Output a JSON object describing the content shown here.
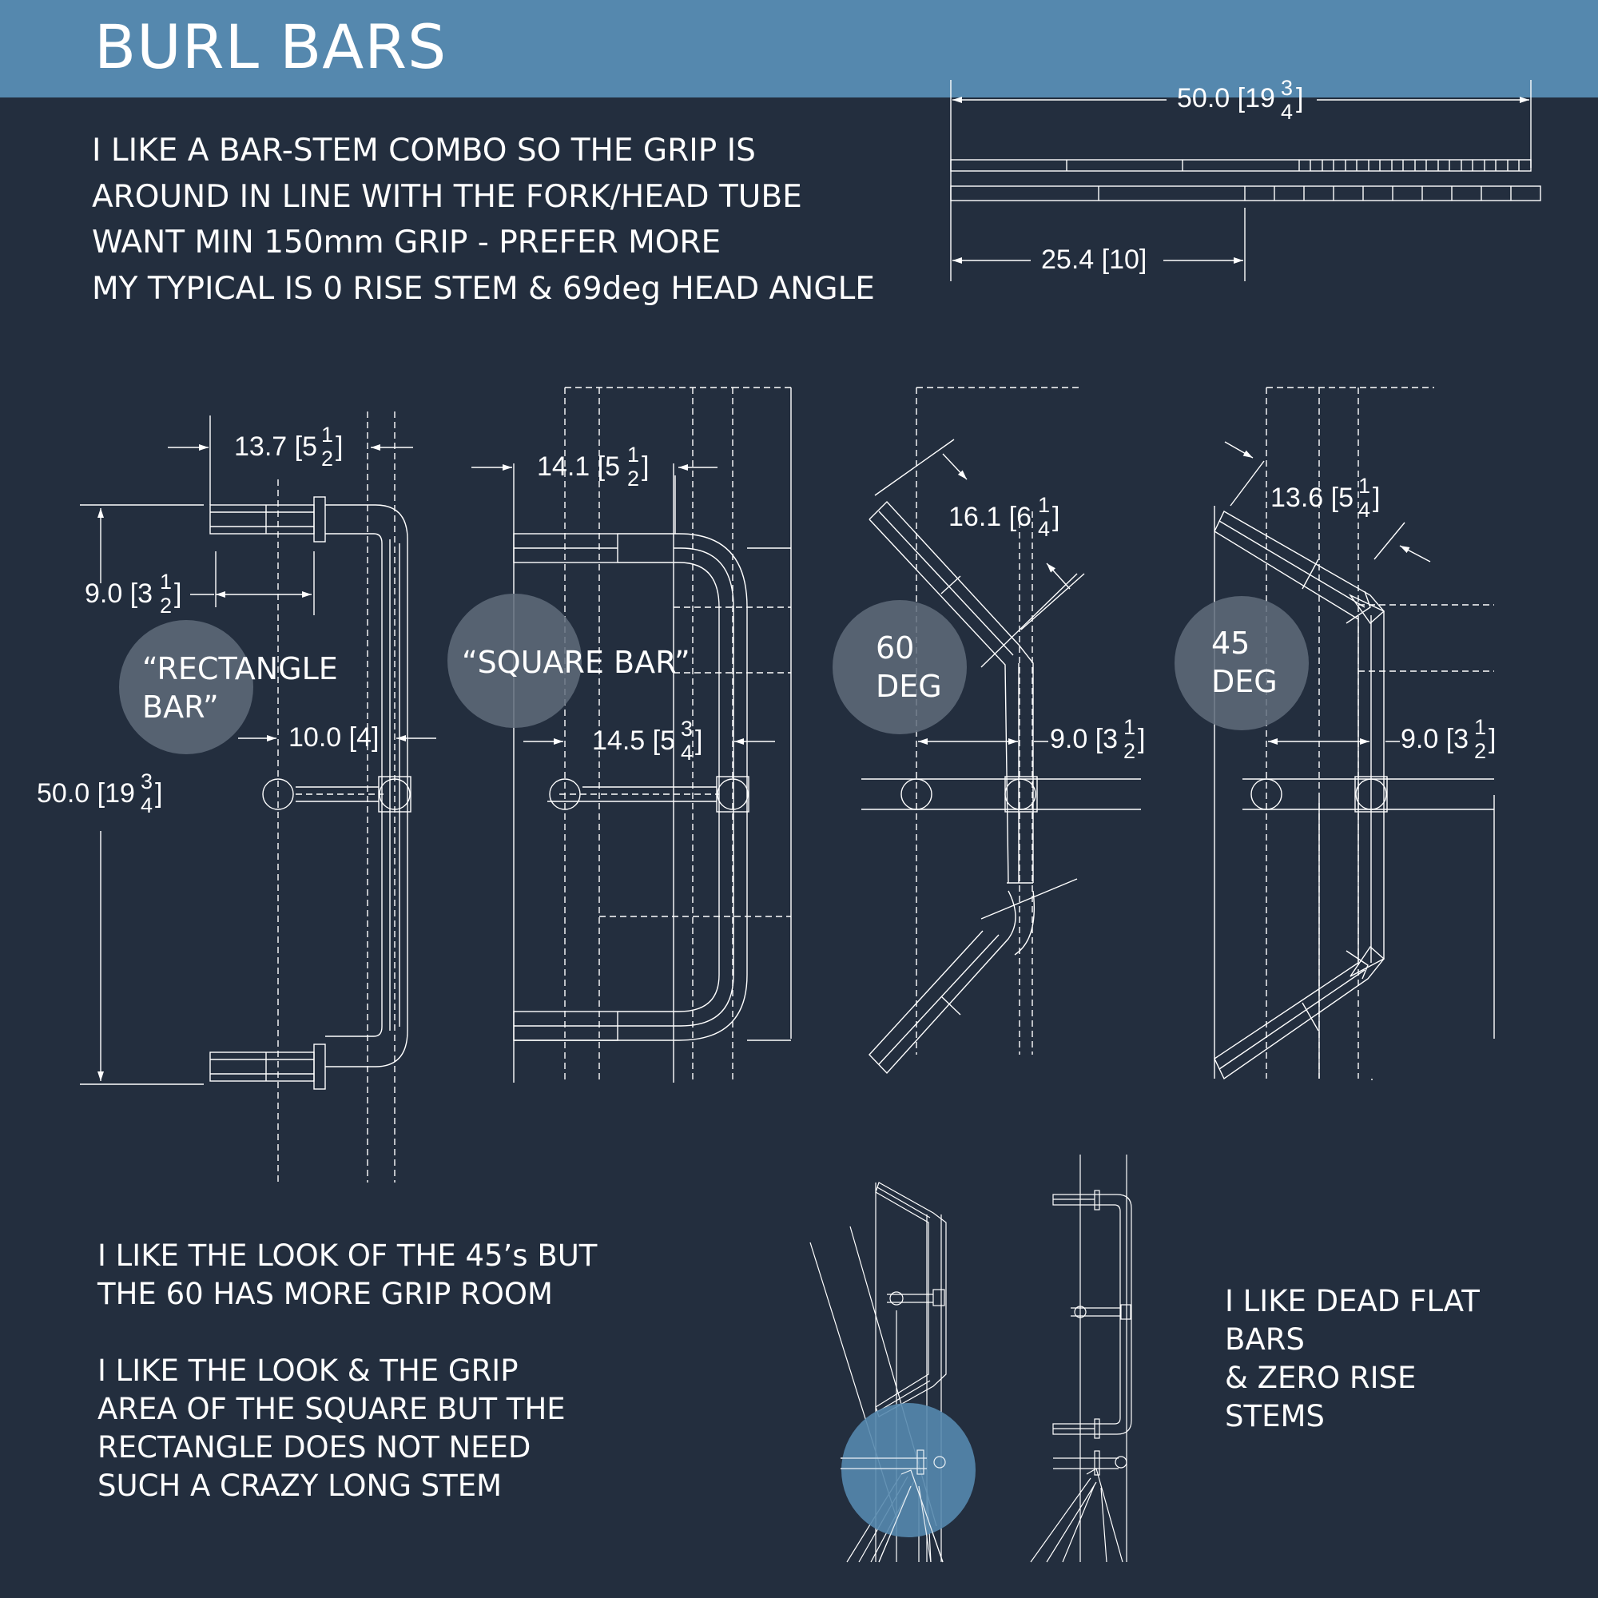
{
  "title": "BURL BARS",
  "top_notes": [
    "I LIKE A BAR-STEM COMBO SO THE GRIP IS",
    "AROUND IN LINE WITH THE FORK/HEAD TUBE",
    "WANT MIN 150mm GRIP - PREFER MORE",
    "MY TYPICAL IS 0 RISE STEM & 69deg HEAD ANGLE"
  ],
  "overall_dims": {
    "length_label": "50.0 [19",
    "length_frac": [
      "3",
      "4"
    ],
    "half_label": "25.4 [10]"
  },
  "bars": {
    "rectangle": {
      "bubble": [
        "“RECTANGLE",
        "BAR”"
      ],
      "grip_dim": "13.7 [5",
      "grip_frac": [
        "1",
        "2"
      ],
      "reach_dim": "9.0 [3",
      "reach_frac": [
        "1",
        "2"
      ],
      "stem_dim": "10.0 [4]",
      "width_dim": "50.0 [19",
      "width_frac": [
        "3",
        "4"
      ]
    },
    "square": {
      "bubble": [
        "“SQUARE BAR”"
      ],
      "grip_dim": "14.1 [5",
      "grip_frac": [
        "1",
        "2"
      ],
      "stem_dim": "14.5 [5",
      "stem_frac": [
        "3",
        "4"
      ]
    },
    "deg60": {
      "bubble": [
        "60",
        "DEG"
      ],
      "grip_dim": "16.1 [6",
      "grip_frac": [
        "1",
        "4"
      ],
      "stem_dim": "9.0 [3",
      "stem_frac": [
        "1",
        "2"
      ]
    },
    "deg45": {
      "bubble": [
        "45",
        "DEG"
      ],
      "grip_dim": "13.6 [5",
      "grip_frac": [
        "1",
        "4"
      ],
      "stem_dim": "9.0 [3",
      "stem_frac": [
        "1",
        "2"
      ]
    }
  },
  "lower_notes_a": [
    "I LIKE THE LOOK OF THE 45’s BUT",
    "THE 60 HAS MORE GRIP ROOM"
  ],
  "lower_notes_b": [
    "I LIKE THE LOOK & THE GRIP",
    "AREA OF THE SQUARE BUT THE",
    "RECTANGLE DOES NOT NEED",
    "SUCH A CRAZY LONG STEM"
  ],
  "right_notes": [
    "I LIKE DEAD FLAT",
    "BARS",
    "& ZERO RISE",
    "STEMS"
  ],
  "colors": {
    "background": "#232e3e",
    "header": "#5588ae",
    "line": "#ffffff",
    "bubble_gray": "#5f6b7a",
    "bubble_blue": "#5588ae"
  }
}
